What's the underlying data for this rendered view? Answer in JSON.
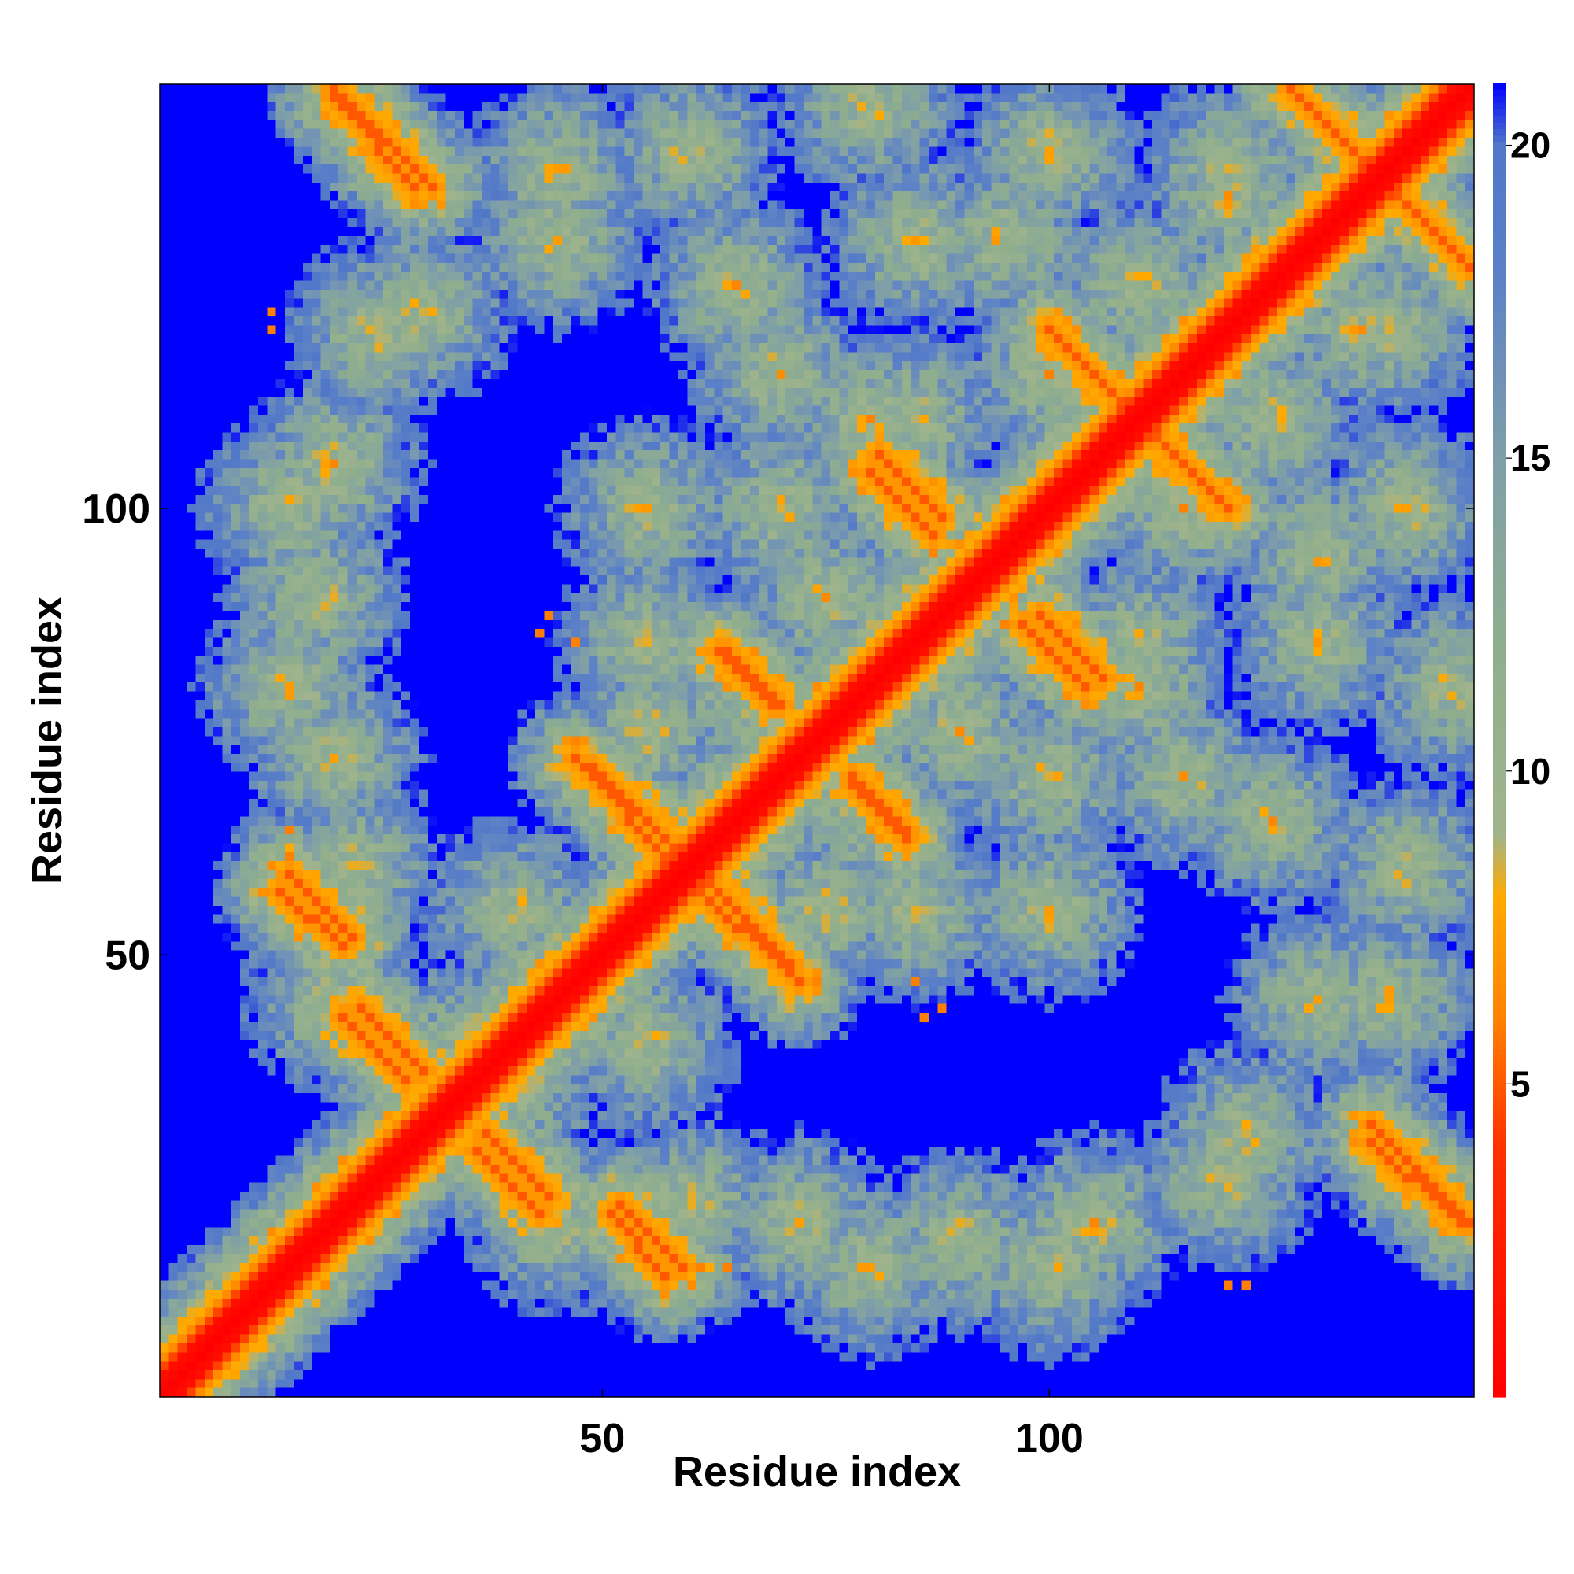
{
  "chart_data": {
    "type": "heatmap",
    "title": "",
    "xlabel": "Residue index",
    "ylabel": "Residue index",
    "n_residues": 147,
    "xlim": [
      1,
      147
    ],
    "ylim": [
      1,
      147
    ],
    "x_ticks": [
      50,
      100
    ],
    "y_ticks": [
      50,
      100
    ],
    "colorbar": {
      "range": [
        0,
        21
      ],
      "ticks": [
        5,
        10,
        15,
        20
      ],
      "stops": [
        {
          "value": 0,
          "color": "#ff0000"
        },
        {
          "value": 4,
          "color": "#ff3000"
        },
        {
          "value": 6,
          "color": "#ff8000"
        },
        {
          "value": 8,
          "color": "#ffaa00"
        },
        {
          "value": 9,
          "color": "#a0b48c"
        },
        {
          "value": 12,
          "color": "#8fae8e"
        },
        {
          "value": 15,
          "color": "#7f9fa8"
        },
        {
          "value": 18,
          "color": "#5b80c8"
        },
        {
          "value": 20,
          "color": "#5077c8"
        },
        {
          "value": 21,
          "color": "#0000ff"
        }
      ]
    },
    "matrix_description": "Symmetric residue-residue distance map (Angstrom); main diagonal near 0; values above 21 saturate to blue.",
    "diagonal_width": 3,
    "contact_bands": [
      {
        "i0": 20,
        "j0": 147,
        "i1": 31,
        "j1": 136,
        "min": 5
      },
      {
        "i0": 127,
        "j0": 147,
        "i1": 147,
        "j1": 127,
        "min": 5
      },
      {
        "i0": 100,
        "j0": 120,
        "i1": 110,
        "j1": 110,
        "min": 5
      },
      {
        "i0": 99,
        "j0": 88,
        "i1": 106,
        "j1": 81,
        "min": 5
      },
      {
        "i0": 80,
        "j0": 104,
        "i1": 87,
        "j1": 97,
        "min": 5
      },
      {
        "i0": 64,
        "j0": 84,
        "i1": 70,
        "j1": 78,
        "min": 5
      },
      {
        "i0": 49,
        "j0": 71,
        "i1": 58,
        "j1": 62,
        "min": 5
      },
      {
        "i0": 60,
        "j0": 58,
        "i1": 72,
        "j1": 47,
        "min": 5
      },
      {
        "i0": 78,
        "j0": 69,
        "i1": 84,
        "j1": 63,
        "min": 5
      },
      {
        "i0": 15,
        "j0": 59,
        "i1": 22,
        "j1": 52,
        "min": 5
      },
      {
        "i0": 21,
        "j0": 43,
        "i1": 28,
        "j1": 36,
        "min": 5
      },
      {
        "i0": 37,
        "j0": 30,
        "i1": 44,
        "j1": 23,
        "min": 5
      },
      {
        "i0": 51,
        "j0": 21,
        "i1": 57,
        "j1": 14,
        "min": 5
      },
      {
        "i0": 136,
        "j0": 29,
        "i1": 146,
        "j1": 20,
        "min": 5
      }
    ],
    "shell_centers": [
      [
        30,
        122
      ],
      [
        45,
        138
      ],
      [
        18,
        90
      ],
      [
        20,
        72
      ],
      [
        40,
        55
      ],
      [
        55,
        100
      ],
      [
        70,
        115
      ],
      [
        85,
        130
      ],
      [
        100,
        140
      ],
      [
        110,
        125
      ],
      [
        120,
        138
      ],
      [
        135,
        120
      ],
      [
        140,
        100
      ],
      [
        145,
        80
      ],
      [
        140,
        60
      ],
      [
        130,
        45
      ],
      [
        120,
        25
      ],
      [
        100,
        15
      ],
      [
        80,
        15
      ],
      [
        60,
        22
      ],
      [
        45,
        20
      ],
      [
        35,
        40
      ],
      [
        65,
        80
      ],
      [
        90,
        75
      ],
      [
        110,
        80
      ],
      [
        125,
        65
      ],
      [
        100,
        55
      ],
      [
        75,
        55
      ],
      [
        55,
        85
      ],
      [
        115,
        100
      ],
      [
        130,
        95
      ],
      [
        85,
        110
      ],
      [
        70,
        100
      ],
      [
        20,
        105
      ]
    ],
    "isolated_contacts": [
      [
        43,
        86
      ],
      [
        88,
        44
      ],
      [
        85,
        47
      ],
      [
        13,
        122
      ],
      [
        120,
        13
      ],
      [
        15,
        64
      ],
      [
        64,
        15
      ]
    ]
  }
}
